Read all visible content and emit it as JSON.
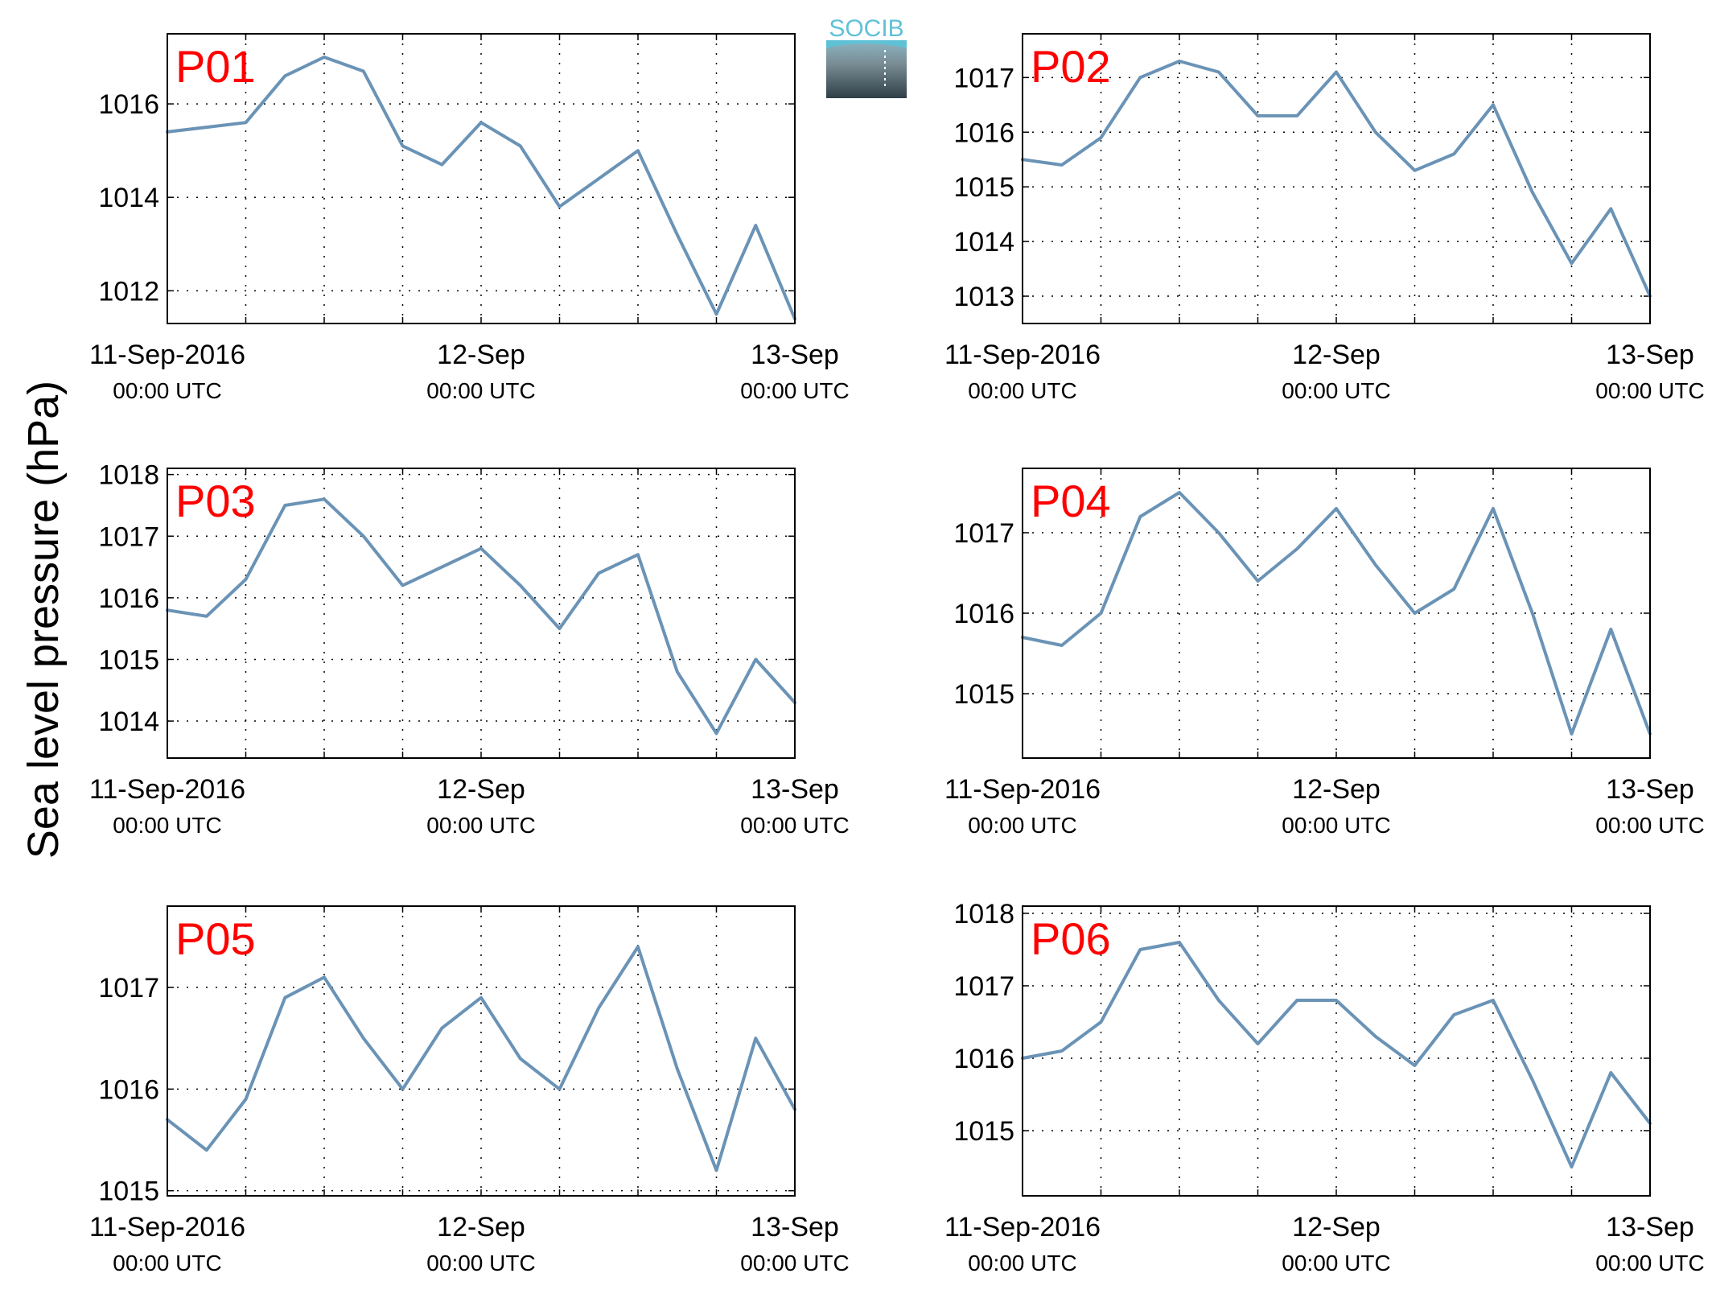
{
  "ylabel": "Sea level pressure (hPa)",
  "colors": {
    "line": "#6a93b6",
    "panel_label": "#ff0000",
    "logo_text": "#5fc1d6",
    "logo_dark": "#3a4a52"
  },
  "logo": {
    "text": "SOCIB"
  },
  "chart_data": [
    {
      "type": "line",
      "title": "P01",
      "x": [
        "11-Sep-2016 00:00",
        "11-Sep-2016 03:00",
        "11-Sep-2016 06:00",
        "11-Sep-2016 09:00",
        "11-Sep-2016 12:00",
        "11-Sep-2016 15:00",
        "11-Sep-2016 18:00",
        "11-Sep-2016 21:00",
        "12-Sep-2016 00:00",
        "12-Sep-2016 03:00",
        "12-Sep-2016 06:00",
        "12-Sep-2016 09:00",
        "12-Sep-2016 12:00",
        "12-Sep-2016 15:00",
        "12-Sep-2016 18:00",
        "12-Sep-2016 21:00",
        "13-Sep-2016 00:00"
      ],
      "y": [
        1015.4,
        1015.5,
        1015.6,
        1016.6,
        1017.0,
        1016.7,
        1015.1,
        1014.7,
        1015.6,
        1015.1,
        1013.8,
        1014.4,
        1015.0,
        1013.2,
        1011.5,
        1013.4,
        1011.4
      ],
      "xticks": [
        "11-Sep-2016",
        "12-Sep",
        "13-Sep"
      ],
      "xtick_sublabel": "00:00 UTC",
      "yticks": [
        1012,
        1014,
        1016
      ],
      "ylim": [
        1011.3,
        1017.5
      ],
      "grid": true
    },
    {
      "type": "line",
      "title": "P02",
      "x": [
        "11-Sep-2016 00:00",
        "11-Sep-2016 03:00",
        "11-Sep-2016 06:00",
        "11-Sep-2016 09:00",
        "11-Sep-2016 12:00",
        "11-Sep-2016 15:00",
        "11-Sep-2016 18:00",
        "11-Sep-2016 21:00",
        "12-Sep-2016 00:00",
        "12-Sep-2016 03:00",
        "12-Sep-2016 06:00",
        "12-Sep-2016 09:00",
        "12-Sep-2016 12:00",
        "12-Sep-2016 15:00",
        "12-Sep-2016 18:00",
        "12-Sep-2016 21:00",
        "13-Sep-2016 00:00"
      ],
      "y": [
        1015.5,
        1015.4,
        1015.9,
        1017.0,
        1017.3,
        1017.1,
        1016.3,
        1016.3,
        1017.1,
        1016.0,
        1015.3,
        1015.6,
        1016.5,
        1014.9,
        1013.6,
        1014.6,
        1013.0
      ],
      "xticks": [
        "11-Sep-2016",
        "12-Sep",
        "13-Sep"
      ],
      "xtick_sublabel": "00:00 UTC",
      "yticks": [
        1013,
        1014,
        1015,
        1016,
        1017
      ],
      "ylim": [
        1012.5,
        1017.8
      ],
      "grid": true
    },
    {
      "type": "line",
      "title": "P03",
      "x": [
        "11-Sep-2016 00:00",
        "11-Sep-2016 03:00",
        "11-Sep-2016 06:00",
        "11-Sep-2016 09:00",
        "11-Sep-2016 12:00",
        "11-Sep-2016 15:00",
        "11-Sep-2016 18:00",
        "11-Sep-2016 21:00",
        "12-Sep-2016 00:00",
        "12-Sep-2016 03:00",
        "12-Sep-2016 06:00",
        "12-Sep-2016 09:00",
        "12-Sep-2016 12:00",
        "12-Sep-2016 15:00",
        "12-Sep-2016 18:00",
        "12-Sep-2016 21:00",
        "13-Sep-2016 00:00"
      ],
      "y": [
        1015.8,
        1015.7,
        1016.3,
        1017.5,
        1017.6,
        1017.0,
        1016.2,
        1016.5,
        1016.8,
        1016.2,
        1015.5,
        1016.4,
        1016.7,
        1014.8,
        1013.8,
        1015.0,
        1014.3
      ],
      "xticks": [
        "11-Sep-2016",
        "12-Sep",
        "13-Sep"
      ],
      "xtick_sublabel": "00:00 UTC",
      "yticks": [
        1014,
        1015,
        1016,
        1017,
        1018
      ],
      "ylim": [
        1013.4,
        1018.1
      ],
      "grid": true
    },
    {
      "type": "line",
      "title": "P04",
      "x": [
        "11-Sep-2016 00:00",
        "11-Sep-2016 03:00",
        "11-Sep-2016 06:00",
        "11-Sep-2016 09:00",
        "11-Sep-2016 12:00",
        "11-Sep-2016 15:00",
        "11-Sep-2016 18:00",
        "11-Sep-2016 21:00",
        "12-Sep-2016 00:00",
        "12-Sep-2016 03:00",
        "12-Sep-2016 06:00",
        "12-Sep-2016 09:00",
        "12-Sep-2016 12:00",
        "12-Sep-2016 15:00",
        "12-Sep-2016 18:00",
        "12-Sep-2016 21:00",
        "13-Sep-2016 00:00"
      ],
      "y": [
        1015.7,
        1015.6,
        1016.0,
        1017.2,
        1017.5,
        1017.0,
        1016.4,
        1016.8,
        1017.3,
        1016.6,
        1016.0,
        1016.3,
        1017.3,
        1016.0,
        1014.5,
        1015.8,
        1014.5
      ],
      "xticks": [
        "11-Sep-2016",
        "12-Sep",
        "13-Sep"
      ],
      "xtick_sublabel": "00:00 UTC",
      "yticks": [
        1015,
        1016,
        1017
      ],
      "ylim": [
        1014.2,
        1017.8
      ],
      "grid": true
    },
    {
      "type": "line",
      "title": "P05",
      "x": [
        "11-Sep-2016 00:00",
        "11-Sep-2016 03:00",
        "11-Sep-2016 06:00",
        "11-Sep-2016 09:00",
        "11-Sep-2016 12:00",
        "11-Sep-2016 15:00",
        "11-Sep-2016 18:00",
        "11-Sep-2016 21:00",
        "12-Sep-2016 00:00",
        "12-Sep-2016 03:00",
        "12-Sep-2016 06:00",
        "12-Sep-2016 09:00",
        "12-Sep-2016 12:00",
        "12-Sep-2016 15:00",
        "12-Sep-2016 18:00",
        "12-Sep-2016 21:00",
        "13-Sep-2016 00:00"
      ],
      "y": [
        1015.7,
        1015.4,
        1015.9,
        1016.9,
        1017.1,
        1016.5,
        1016.0,
        1016.6,
        1016.9,
        1016.3,
        1016.0,
        1016.8,
        1017.4,
        1016.2,
        1015.2,
        1016.5,
        1015.8
      ],
      "xticks": [
        "11-Sep-2016",
        "12-Sep",
        "13-Sep"
      ],
      "xtick_sublabel": "00:00 UTC",
      "yticks": [
        1015,
        1016,
        1017
      ],
      "ylim": [
        1014.95,
        1017.8
      ],
      "grid": true
    },
    {
      "type": "line",
      "title": "P06",
      "x": [
        "11-Sep-2016 00:00",
        "11-Sep-2016 03:00",
        "11-Sep-2016 06:00",
        "11-Sep-2016 09:00",
        "11-Sep-2016 12:00",
        "11-Sep-2016 15:00",
        "11-Sep-2016 18:00",
        "11-Sep-2016 21:00",
        "12-Sep-2016 00:00",
        "12-Sep-2016 03:00",
        "12-Sep-2016 06:00",
        "12-Sep-2016 09:00",
        "12-Sep-2016 12:00",
        "12-Sep-2016 15:00",
        "12-Sep-2016 18:00",
        "12-Sep-2016 21:00",
        "13-Sep-2016 00:00"
      ],
      "y": [
        1016.0,
        1016.1,
        1016.5,
        1017.5,
        1017.6,
        1016.8,
        1016.2,
        1016.8,
        1016.8,
        1016.3,
        1015.9,
        1016.6,
        1016.8,
        1015.7,
        1014.5,
        1015.8,
        1015.1
      ],
      "xticks": [
        "11-Sep-2016",
        "12-Sep",
        "13-Sep"
      ],
      "xtick_sublabel": "00:00 UTC",
      "yticks": [
        1015,
        1016,
        1017,
        1018
      ],
      "ylim": [
        1014.1,
        1018.1
      ],
      "grid": true
    }
  ]
}
